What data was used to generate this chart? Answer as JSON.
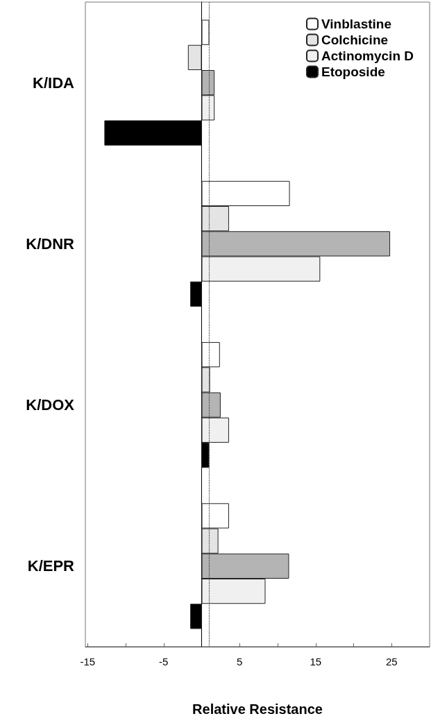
{
  "chart_data": {
    "type": "bar",
    "orientation": "horizontal",
    "xlabel": "Relative Resistance",
    "categories": [
      "K/IDA",
      "K/DNR",
      "K/DOX",
      "K/EPR"
    ],
    "series": [
      {
        "name": "Vinblastine",
        "color": "#ffffff",
        "values": [
          1.0,
          11.6,
          2.4,
          3.6
        ]
      },
      {
        "name": "Colchicine",
        "color": "#e4e4e4",
        "values": [
          -1.8,
          3.6,
          1.1,
          2.2
        ]
      },
      {
        "color": "#b4b4b4",
        "values": [
          1.7,
          24.8,
          2.5,
          11.5
        ]
      },
      {
        "name": "Actinomycin D",
        "color": "#f0f0f0",
        "values": [
          1.7,
          15.6,
          3.6,
          8.4
        ]
      },
      {
        "name": "Etoposide",
        "color": "#000000",
        "values": [
          -12.8,
          -1.5,
          1.0,
          -1.5
        ]
      }
    ],
    "xlim": [
      -15.3,
      30
    ],
    "xticks": [
      -15,
      {
        "value": -10,
        "label": null
      },
      -5,
      5,
      {
        "value": 10,
        "label": null
      },
      15,
      {
        "value": 20,
        "label": null
      },
      25
    ],
    "ref_lines": [
      {
        "axis": "x",
        "value": 1,
        "line_style": "dotted",
        "color": "#333333"
      }
    ],
    "legend": "top right",
    "grid": false
  }
}
